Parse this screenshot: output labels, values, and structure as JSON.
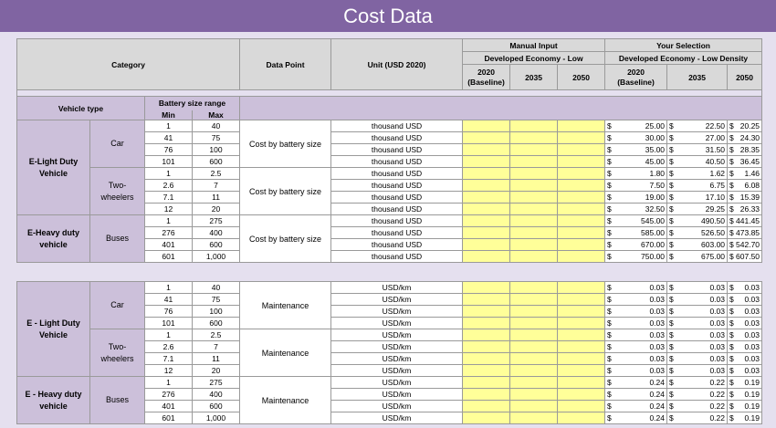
{
  "title": "Cost Data",
  "header": {
    "category": "Category",
    "data_point": "Data Point",
    "unit": "Unit (USD 2020)",
    "manual_input": "Manual Input",
    "manual_scenario": "Developed Economy - Low",
    "your_selection": "Your Selection",
    "selection_scenario": "Developed Economy - Low Density",
    "year_baseline": "2020",
    "baseline_label": "(Baseline)",
    "year_2035": "2035",
    "year_2050": "2050"
  },
  "subheader": {
    "vehicle_type": "Vehicle type",
    "battery_range": "Battery size range",
    "min": "Min",
    "max": "Max"
  },
  "currency": "$",
  "cost_table": {
    "groups": [
      {
        "vehicle": "E-Light Duty Vehicle",
        "categories": [
          {
            "name": "Car",
            "data_point": "Cost by battery size",
            "rows": [
              {
                "min": "1",
                "max": "40",
                "unit": "thousand USD",
                "v2020": "25.00",
                "v2035": "22.50",
                "v2050": "20.25"
              },
              {
                "min": "41",
                "max": "75",
                "unit": "thousand USD",
                "v2020": "30.00",
                "v2035": "27.00",
                "v2050": "24.30"
              },
              {
                "min": "76",
                "max": "100",
                "unit": "thousand USD",
                "v2020": "35.00",
                "v2035": "31.50",
                "v2050": "28.35"
              },
              {
                "min": "101",
                "max": "600",
                "unit": "thousand USD",
                "v2020": "45.00",
                "v2035": "40.50",
                "v2050": "36.45"
              }
            ]
          },
          {
            "name": "Two-wheelers",
            "data_point": "Cost by battery size",
            "rows": [
              {
                "min": "1",
                "max": "2.5",
                "unit": "thousand USD",
                "v2020": "1.80",
                "v2035": "1.62",
                "v2050": "1.46"
              },
              {
                "min": "2.6",
                "max": "7",
                "unit": "thousand USD",
                "v2020": "7.50",
                "v2035": "6.75",
                "v2050": "6.08"
              },
              {
                "min": "7.1",
                "max": "11",
                "unit": "thousand USD",
                "v2020": "19.00",
                "v2035": "17.10",
                "v2050": "15.39"
              },
              {
                "min": "12",
                "max": "20",
                "unit": "thousand USD",
                "v2020": "32.50",
                "v2035": "29.25",
                "v2050": "26.33"
              }
            ]
          }
        ]
      },
      {
        "vehicle": "E-Heavy duty vehicle",
        "categories": [
          {
            "name": "Buses",
            "data_point": "Cost by battery size",
            "rows": [
              {
                "min": "1",
                "max": "275",
                "unit": "thousand USD",
                "v2020": "545.00",
                "v2035": "490.50",
                "v2050": "441.45"
              },
              {
                "min": "276",
                "max": "400",
                "unit": "thousand USD",
                "v2020": "585.00",
                "v2035": "526.50",
                "v2050": "473.85"
              },
              {
                "min": "401",
                "max": "600",
                "unit": "thousand USD",
                "v2020": "670.00",
                "v2035": "603.00",
                "v2050": "542.70"
              },
              {
                "min": "601",
                "max": "1,000",
                "unit": "thousand USD",
                "v2020": "750.00",
                "v2035": "675.00",
                "v2050": "607.50"
              }
            ]
          }
        ]
      }
    ]
  },
  "maintenance_table": {
    "groups": [
      {
        "vehicle": "E - Light Duty Vehicle",
        "categories": [
          {
            "name": "Car",
            "data_point": "Maintenance",
            "rows": [
              {
                "min": "1",
                "max": "40",
                "unit": "USD/km",
                "v2020": "0.03",
                "v2035": "0.03",
                "v2050": "0.03"
              },
              {
                "min": "41",
                "max": "75",
                "unit": "USD/km",
                "v2020": "0.03",
                "v2035": "0.03",
                "v2050": "0.03"
              },
              {
                "min": "76",
                "max": "100",
                "unit": "USD/km",
                "v2020": "0.03",
                "v2035": "0.03",
                "v2050": "0.03"
              },
              {
                "min": "101",
                "max": "600",
                "unit": "USD/km",
                "v2020": "0.03",
                "v2035": "0.03",
                "v2050": "0.03"
              }
            ]
          },
          {
            "name": "Two-wheelers",
            "data_point": "Maintenance",
            "rows": [
              {
                "min": "1",
                "max": "2.5",
                "unit": "USD/km",
                "v2020": "0.03",
                "v2035": "0.03",
                "v2050": "0.03"
              },
              {
                "min": "2.6",
                "max": "7",
                "unit": "USD/km",
                "v2020": "0.03",
                "v2035": "0.03",
                "v2050": "0.03"
              },
              {
                "min": "7.1",
                "max": "11",
                "unit": "USD/km",
                "v2020": "0.03",
                "v2035": "0.03",
                "v2050": "0.03"
              },
              {
                "min": "12",
                "max": "20",
                "unit": "USD/km",
                "v2020": "0.03",
                "v2035": "0.03",
                "v2050": "0.03"
              }
            ]
          }
        ]
      },
      {
        "vehicle": "E - Heavy duty vehicle",
        "categories": [
          {
            "name": "Buses",
            "data_point": "Maintenance",
            "rows": [
              {
                "min": "1",
                "max": "275",
                "unit": "USD/km",
                "v2020": "0.24",
                "v2035": "0.22",
                "v2050": "0.19"
              },
              {
                "min": "276",
                "max": "400",
                "unit": "USD/km",
                "v2020": "0.24",
                "v2035": "0.22",
                "v2050": "0.19"
              },
              {
                "min": "401",
                "max": "600",
                "unit": "USD/km",
                "v2020": "0.24",
                "v2035": "0.22",
                "v2050": "0.19"
              },
              {
                "min": "601",
                "max": "1,000",
                "unit": "USD/km",
                "v2020": "0.24",
                "v2035": "0.22",
                "v2050": "0.19"
              }
            ]
          }
        ]
      }
    ]
  },
  "colors": {
    "title_bar": "#8064a2",
    "category_fill": "#ccc0da",
    "input_fill": "#ffff99",
    "header_fill": "#d9d9d9"
  }
}
